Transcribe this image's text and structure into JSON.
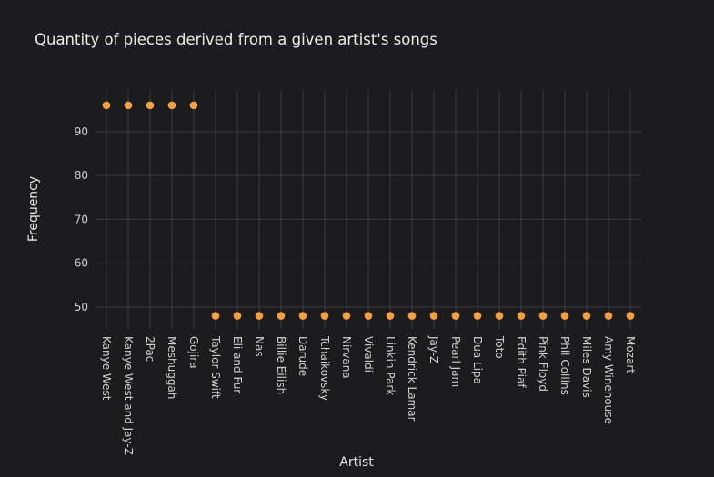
{
  "chart_data": {
    "type": "scatter",
    "title": "Quantity of pieces derived from a given artist's songs",
    "xlabel": "Artist",
    "ylabel": "Frequency",
    "ylim": [
      45,
      99.5
    ],
    "yticks": [
      50,
      60,
      70,
      80,
      90
    ],
    "grid": true,
    "marker_color": "#f59e42",
    "categories": [
      "Kanye West",
      "Kanye West and Jay-Z",
      "2Pac",
      "Meshuggah",
      "Gojira",
      "Taylor Swift",
      "Eli and Fur",
      "Nas",
      "Billie Eilish",
      "Darude",
      "Tchaikovsky",
      "Nirvana",
      "Vivaldi",
      "Linkin Park",
      "Kendrick Lamar",
      "Jay-Z",
      "Pearl Jam",
      "Dua Lipa",
      "Toto",
      "Edith Piaf",
      "Pink Floyd",
      "Phil Collins",
      "Miles Davis",
      "Amy Winehouse",
      "Mozart"
    ],
    "values": [
      96,
      96,
      96,
      96,
      96,
      48,
      48,
      48,
      48,
      48,
      48,
      48,
      48,
      48,
      48,
      48,
      48,
      48,
      48,
      48,
      48,
      48,
      48,
      48,
      48
    ]
  }
}
